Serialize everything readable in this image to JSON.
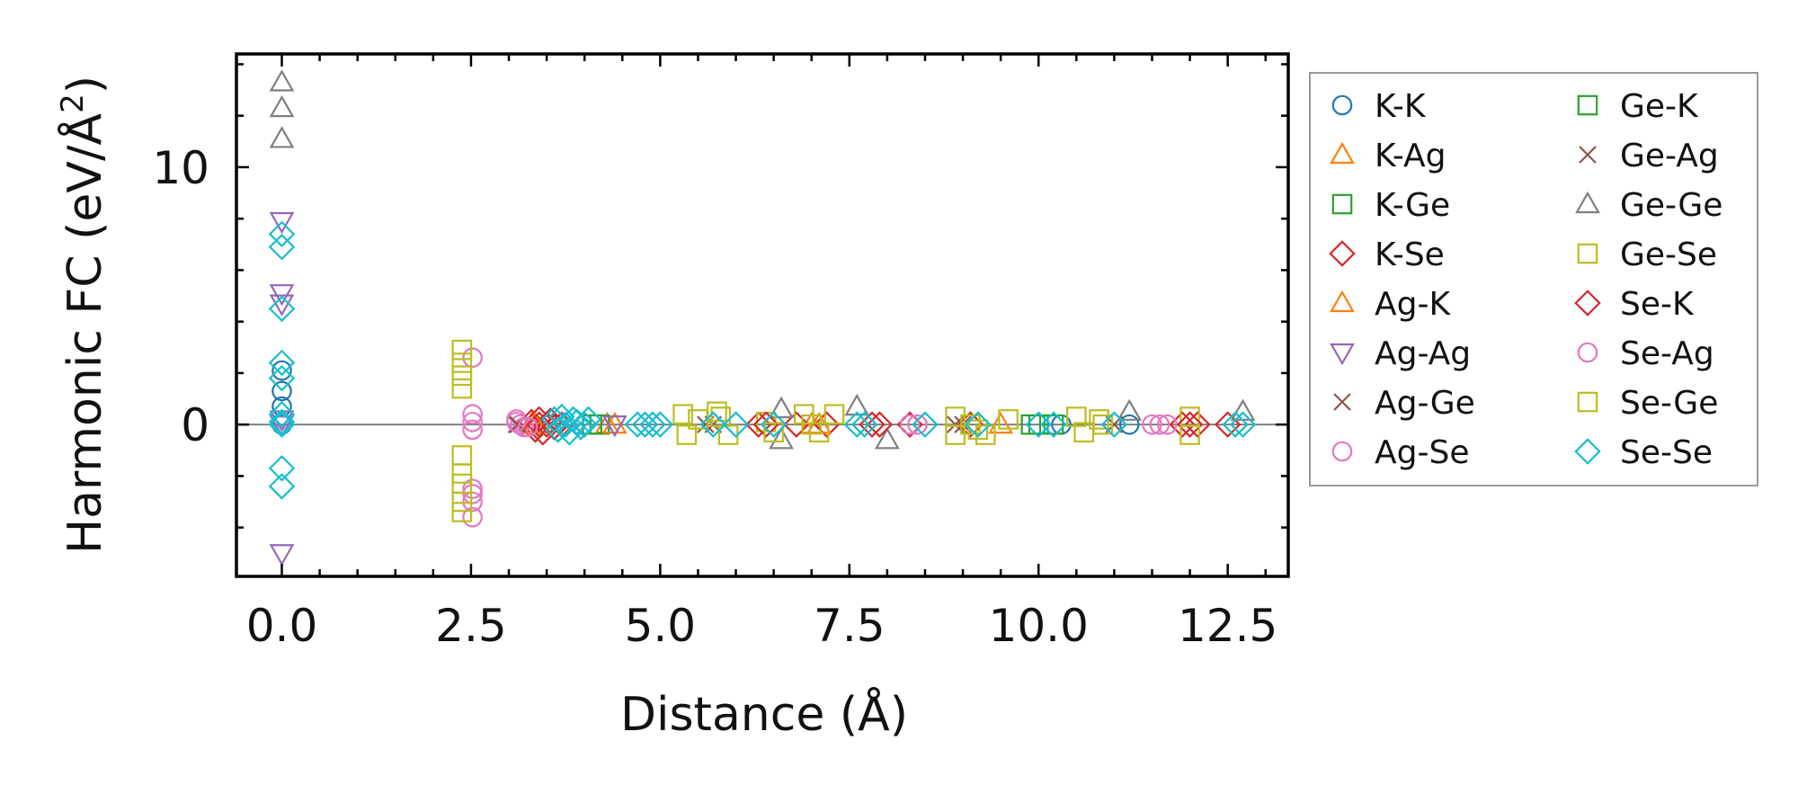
{
  "chart_data": {
    "type": "scatter",
    "title": "",
    "xlabel": "Distance (Å)",
    "ylabel_main": "Harmonic FC (eV/Å",
    "ylabel_sup": "2",
    "ylabel_close": ")",
    "xlim": [
      -0.6,
      13.3
    ],
    "ylim": [
      -5.9,
      14.4
    ],
    "xticks": [
      0.0,
      2.5,
      5.0,
      7.5,
      10.0,
      12.5
    ],
    "xtick_labels": [
      "0.0",
      "2.5",
      "5.0",
      "7.5",
      "10.0",
      "12.5"
    ],
    "yticks": [
      0,
      10
    ],
    "ytick_labels": [
      "0",
      "10"
    ],
    "reference_line_y": 0,
    "legend_position": "outside-right",
    "series": [
      {
        "name": "K-K",
        "marker": "circle",
        "color": "#1f77b4",
        "x": [
          0.0,
          0.0,
          0.0,
          0.0,
          10.3,
          11.2
        ],
        "y": [
          2.1,
          1.3,
          0.7,
          0.0,
          0.0,
          0.0
        ]
      },
      {
        "name": "K-Ag",
        "marker": "triangle-up",
        "color": "#ff7f0e",
        "x": [
          3.3,
          4.3,
          7.0,
          9.5
        ],
        "y": [
          0.0,
          0.0,
          0.0,
          0.0
        ]
      },
      {
        "name": "K-Ge",
        "marker": "square",
        "color": "#2ca02c",
        "x": [
          4.2,
          9.9,
          10.2
        ],
        "y": [
          0.0,
          0.0,
          0.0
        ]
      },
      {
        "name": "K-Se",
        "marker": "diamond",
        "color": "#d62728",
        "x": [
          3.3,
          3.35,
          3.4,
          3.45,
          3.5,
          3.55,
          3.6,
          3.7,
          6.3,
          6.8,
          7.2,
          7.8,
          8.3,
          9.1,
          11.9,
          12.1,
          12.5
        ],
        "y": [
          0.1,
          -0.2,
          0.2,
          -0.3,
          0.0,
          0.15,
          -0.1,
          0.0,
          0.0,
          0.0,
          0.0,
          0.0,
          0.0,
          0.0,
          0.0,
          0.0,
          0.0
        ]
      },
      {
        "name": "Ag-K",
        "marker": "triangle-up",
        "color": "#ff7f0e",
        "x": [
          3.35,
          4.4,
          7.1
        ],
        "y": [
          0.0,
          0.0,
          0.0
        ]
      },
      {
        "name": "Ag-Ag",
        "marker": "triangle-down",
        "color": "#9467bd",
        "x": [
          0.0,
          0.0,
          0.0,
          0.0,
          0.0,
          0.0,
          4.4
        ],
        "y": [
          7.9,
          5.1,
          4.7,
          0.2,
          0.0,
          -5.0,
          0.0
        ]
      },
      {
        "name": "Ag-Ge",
        "marker": "x",
        "color": "#8c564b",
        "x": [
          3.1,
          5.6,
          8.9,
          11.0
        ],
        "y": [
          0.0,
          0.0,
          0.0,
          0.0
        ]
      },
      {
        "name": "Ag-Se",
        "marker": "circle",
        "color": "#e377c2",
        "x": [
          2.52,
          2.52,
          2.52,
          2.52,
          2.52,
          2.52,
          2.52,
          2.52,
          3.1,
          3.15,
          3.2,
          8.3,
          11.5,
          11.7
        ],
        "y": [
          2.6,
          0.4,
          0.1,
          -0.2,
          -2.5,
          -2.7,
          -3.0,
          -3.6,
          0.2,
          0.0,
          -0.1,
          0.0,
          0.0,
          0.0
        ]
      },
      {
        "name": "Ge-K",
        "marker": "square",
        "color": "#2ca02c",
        "x": [
          4.1,
          10.0
        ],
        "y": [
          0.0,
          0.0
        ]
      },
      {
        "name": "Ge-Ag",
        "marker": "x",
        "color": "#8c564b",
        "x": [
          3.12,
          5.7,
          9.0
        ],
        "y": [
          0.0,
          0.0,
          0.0
        ]
      },
      {
        "name": "Ge-Ge",
        "marker": "triangle-up",
        "color": "#7f7f7f",
        "x": [
          0.0,
          0.0,
          0.0,
          6.6,
          6.6,
          7.6,
          8.0,
          11.2,
          12.7
        ],
        "y": [
          13.3,
          12.3,
          11.1,
          0.6,
          -0.6,
          0.7,
          -0.6,
          0.5,
          0.5
        ]
      },
      {
        "name": "Ge-Se",
        "marker": "square",
        "color": "#bcbd22",
        "x": [
          2.38,
          2.38,
          2.38,
          2.38,
          2.38,
          2.38,
          2.38,
          2.38,
          2.38,
          5.3,
          5.5,
          5.8,
          6.4,
          6.9,
          7.1,
          8.9,
          9.2,
          9.6,
          10.5,
          10.8,
          12.0
        ],
        "y": [
          2.9,
          2.4,
          1.9,
          1.4,
          -1.2,
          -1.9,
          -2.3,
          -3.0,
          -3.4,
          0.4,
          0.2,
          0.3,
          0.1,
          0.4,
          -0.3,
          0.3,
          -0.2,
          0.2,
          0.3,
          0.2,
          0.3
        ]
      },
      {
        "name": "Se-K",
        "marker": "diamond",
        "color": "#d62728",
        "x": [
          3.4,
          3.6,
          6.4,
          7.9,
          12.0
        ],
        "y": [
          0.0,
          -0.1,
          0.0,
          0.0,
          0.0
        ]
      },
      {
        "name": "Se-Ag",
        "marker": "circle",
        "color": "#e377c2",
        "x": [
          3.1,
          3.25,
          8.4,
          11.6
        ],
        "y": [
          0.1,
          -0.1,
          0.0,
          0.0
        ]
      },
      {
        "name": "Se-Ge",
        "marker": "square",
        "color": "#bcbd22",
        "x": [
          5.35,
          5.75,
          5.9,
          6.5,
          7.0,
          7.3,
          8.9,
          9.1,
          9.3,
          10.6,
          10.85,
          12.0
        ],
        "y": [
          -0.4,
          0.5,
          -0.4,
          -0.3,
          0.0,
          0.4,
          -0.4,
          0.0,
          -0.4,
          -0.3,
          0.0,
          -0.4
        ]
      },
      {
        "name": "Se-Se",
        "marker": "diamond",
        "color": "#17becf",
        "x": [
          0.0,
          0.0,
          0.0,
          0.0,
          0.0,
          0.0,
          0.0,
          0.0,
          0.0,
          0.0,
          3.6,
          3.65,
          3.7,
          3.75,
          3.8,
          3.85,
          3.9,
          3.95,
          4.0,
          4.05,
          4.7,
          4.8,
          4.9,
          5.0,
          5.7,
          6.0,
          6.5,
          7.6,
          7.7,
          8.5,
          9.2,
          10.0,
          10.2,
          11.0,
          12.6,
          12.7
        ],
        "y": [
          7.4,
          6.9,
          4.5,
          2.4,
          1.8,
          0.4,
          0.0,
          -1.7,
          -2.4,
          0.1,
          0.2,
          -0.2,
          0.3,
          0.0,
          -0.3,
          0.2,
          0.1,
          -0.1,
          0.0,
          0.2,
          0.0,
          0.0,
          0.0,
          0.0,
          0.0,
          0.0,
          0.0,
          0.0,
          0.0,
          0.0,
          0.0,
          0.0,
          0.0,
          0.0,
          0.0,
          0.0
        ]
      }
    ]
  }
}
